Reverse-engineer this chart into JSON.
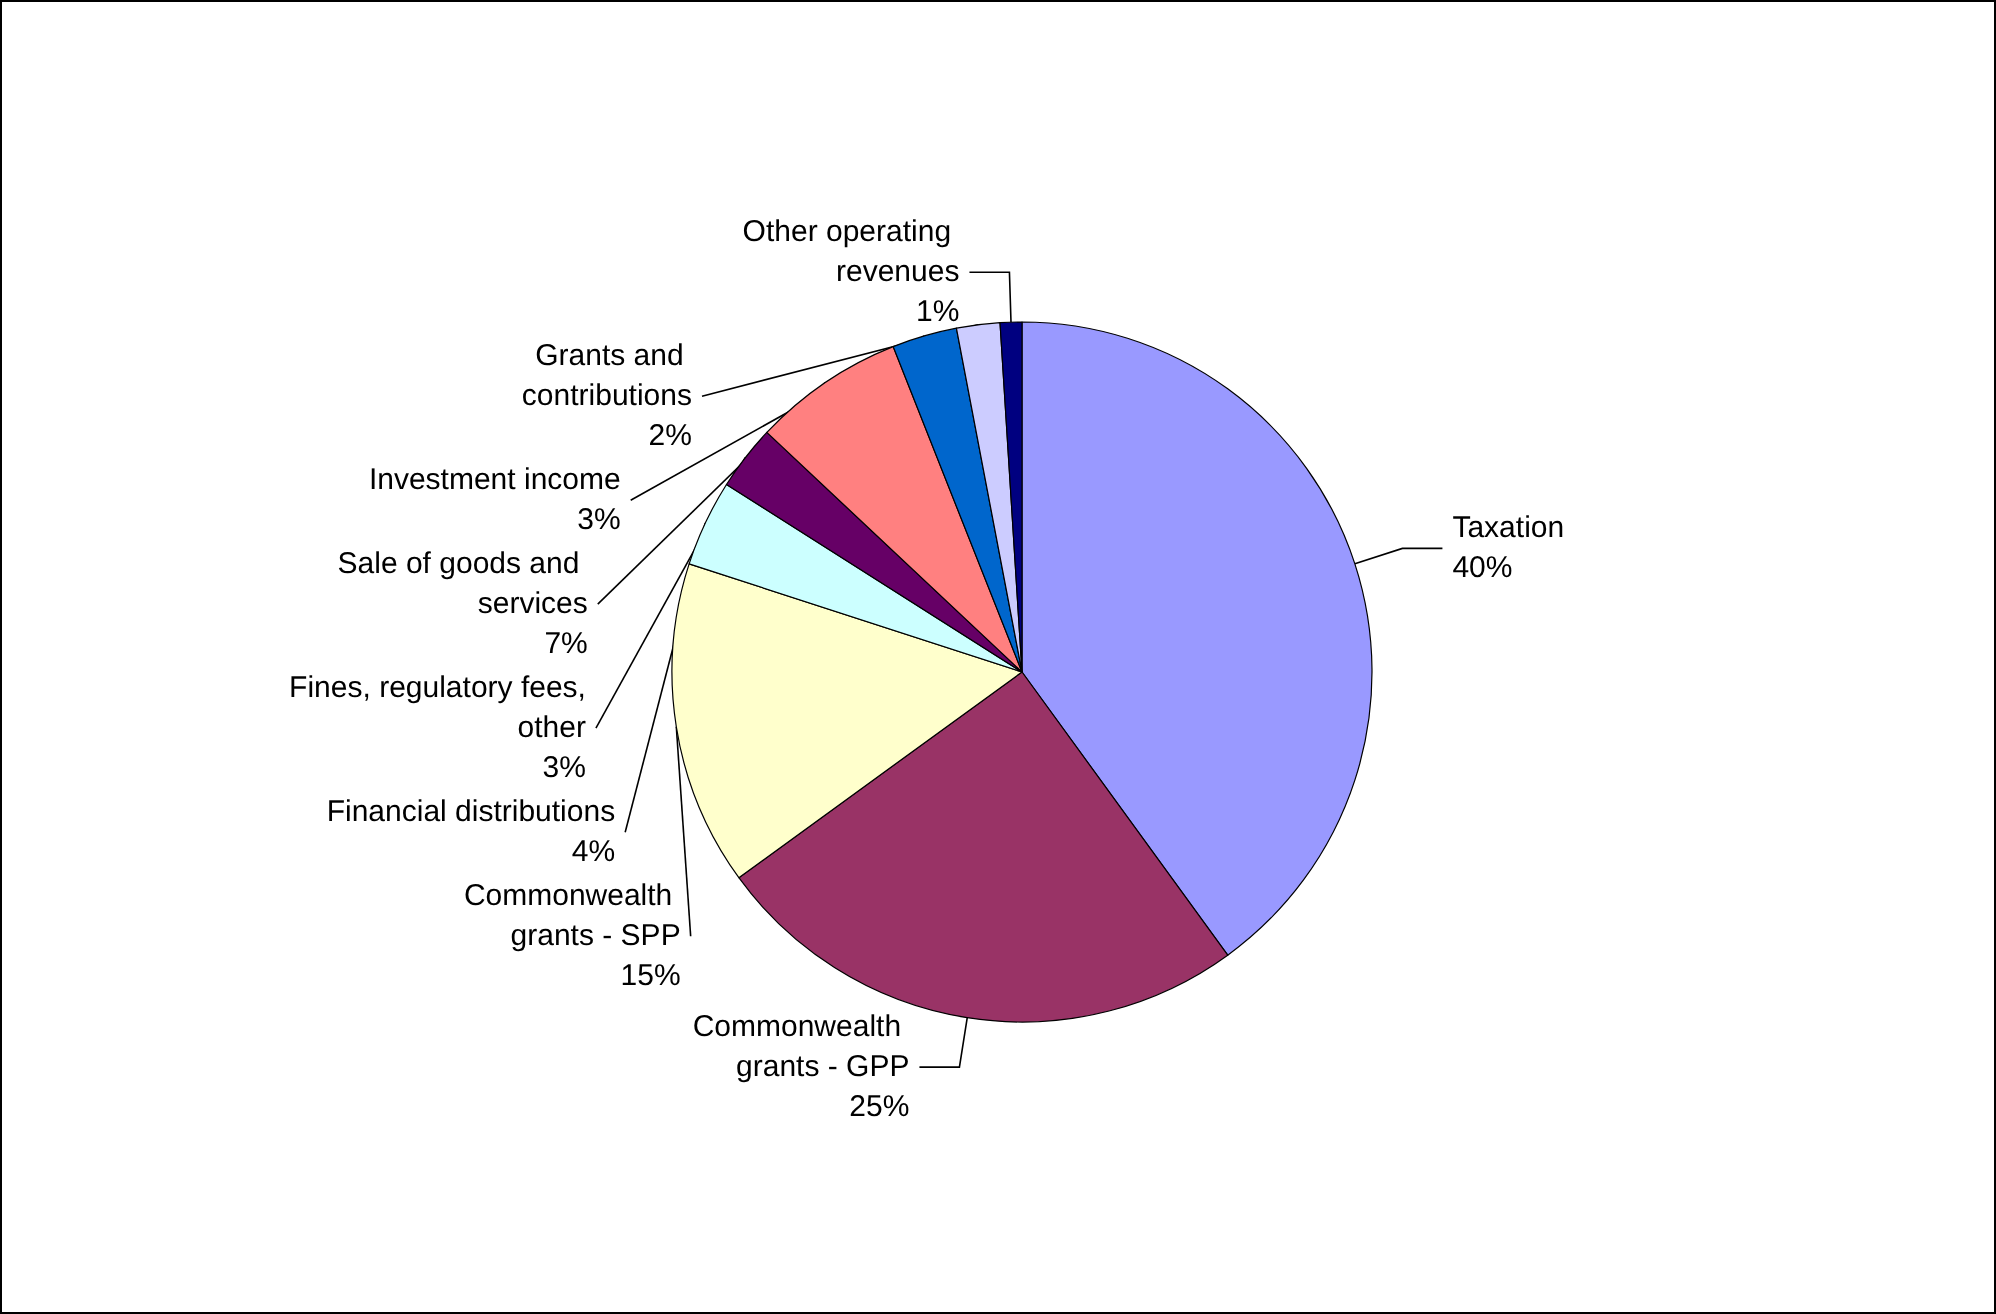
{
  "chart_data": {
    "type": "pie",
    "categories": [
      "Taxation",
      "Commonwealth grants - GPP",
      "Commonwealth grants - SPP",
      "Financial distributions",
      "Fines, regulatory fees, other",
      "Sale of goods and services",
      "Investment income",
      "Grants and contributions",
      "Other operating revenues"
    ],
    "values": [
      40,
      25,
      15,
      4,
      3,
      7,
      3,
      2,
      1
    ],
    "value_labels": [
      "40%",
      "25%",
      "15%",
      "4%",
      "3%",
      "7%",
      "3%",
      "2%",
      "1%"
    ],
    "colors": [
      "#9999ff",
      "#993366",
      "#ffffcc",
      "#ccffff",
      "#660066",
      "#ff8080",
      "#0066cc",
      "#ccccff",
      "#000080"
    ],
    "legend": false
  }
}
